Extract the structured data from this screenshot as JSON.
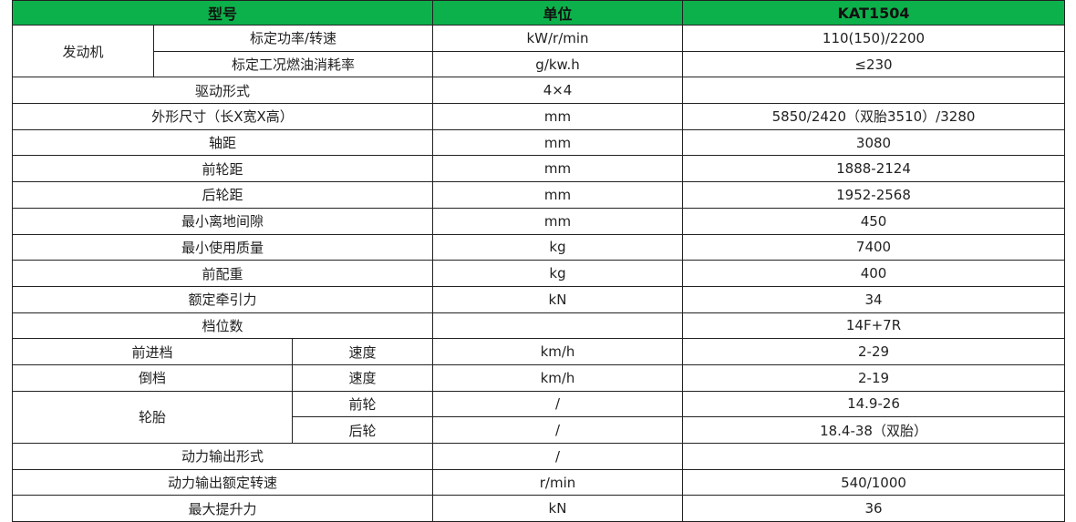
{
  "header": {
    "model_label": "型号",
    "unit_label": "单位",
    "model_value": "KAT1504"
  },
  "colors": {
    "header_bg": "#0db14b"
  },
  "rows": [
    [
      "发动机",
      "标定功率/转速",
      "kW/r/min",
      "110(150)/2200"
    ],
    [
      "标定工况燃油消耗率",
      "g/kw.h",
      "≤230"
    ],
    [
      "驱动形式",
      "4×4",
      ""
    ],
    [
      "外形尺寸（长X宽X高）",
      "mm",
      "5850/2420（双胎3510）/3280"
    ],
    [
      "轴距",
      "mm",
      "3080"
    ],
    [
      "前轮距",
      "mm",
      "1888-2124"
    ],
    [
      "后轮距",
      "mm",
      "1952-2568"
    ],
    [
      "最小离地间隙",
      "mm",
      "450"
    ],
    [
      "最小使用质量",
      "kg",
      "7400"
    ],
    [
      "前配重",
      "kg",
      "400"
    ],
    [
      "额定牵引力",
      "kN",
      "34"
    ],
    [
      "档位数",
      "",
      "14F+7R"
    ],
    [
      "前进档",
      "速度",
      "km/h",
      "2-29"
    ],
    [
      "倒档",
      "速度",
      "km/h",
      "2-19"
    ],
    [
      "轮胎",
      "前轮",
      "/",
      "14.9-26"
    ],
    [
      "后轮",
      "/",
      "18.4-38（双胎）"
    ],
    [
      "动力输出形式",
      "/",
      ""
    ],
    [
      "动力输出额定转速",
      "r/min",
      "540/1000"
    ],
    [
      "最大提升力",
      "kN",
      "36"
    ]
  ]
}
